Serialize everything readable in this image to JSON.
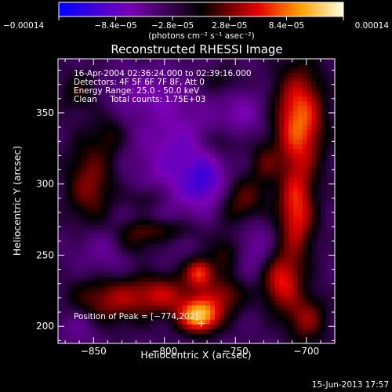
{
  "chart_data": {
    "type": "heatmap",
    "title": "Reconstructed RHESSI Image",
    "xlabel": "Heliocentric X (arcsec)",
    "ylabel": "Heliocentric Y (arcsec)",
    "xlim": [
      -875,
      -680
    ],
    "ylim": [
      188,
      388
    ],
    "x_ticks": [
      -850,
      -800,
      -750,
      -700
    ],
    "x_tick_labels": [
      "−850",
      "−800",
      "−750",
      "−700"
    ],
    "y_ticks": [
      200,
      250,
      300,
      350
    ],
    "y_tick_labels": [
      "200",
      "250",
      "300",
      "350"
    ],
    "colorbar": {
      "range": [
        -0.00014,
        0.00014
      ],
      "ticks": [
        -0.00014,
        -8.4e-05,
        -2.8e-05,
        2.8e-05,
        8.4e-05,
        0.00014
      ],
      "tick_labels": [
        "−0.00014",
        "−8.4e−05",
        "−2.8e−05",
        "2.8e−05",
        "8.4e−05",
        "0.00014"
      ],
      "unit_label": "(photons cm⁻² s⁻¹ asec⁻²)"
    },
    "peak_marker": {
      "x": -774,
      "y": 202
    },
    "blobs": [
      {
        "x": -775,
        "y": 207,
        "sx": 10,
        "sy": 8,
        "amp": 1.35
      },
      {
        "x": -775,
        "y": 238,
        "sx": 7,
        "sy": 7,
        "amp": 0.9
      },
      {
        "x": -802,
        "y": 222,
        "sx": 20,
        "sy": 10,
        "amp": 0.7
      },
      {
        "x": -757,
        "y": 222,
        "sx": 10,
        "sy": 9,
        "amp": 0.55
      },
      {
        "x": -842,
        "y": 218,
        "sx": 18,
        "sy": 12,
        "amp": 0.55
      },
      {
        "x": -805,
        "y": 268,
        "sx": 20,
        "sy": 6,
        "amp": 0.45
      },
      {
        "x": -745,
        "y": 288,
        "sx": 12,
        "sy": 12,
        "amp": 0.55
      },
      {
        "x": -757,
        "y": 252,
        "sx": 8,
        "sy": 9,
        "amp": 0.4
      },
      {
        "x": -705,
        "y": 345,
        "sx": 12,
        "sy": 25,
        "amp": 1.1
      },
      {
        "x": -707,
        "y": 280,
        "sx": 9,
        "sy": 22,
        "amp": 0.9
      },
      {
        "x": -718,
        "y": 232,
        "sx": 10,
        "sy": 14,
        "amp": 0.85
      },
      {
        "x": -700,
        "y": 205,
        "sx": 10,
        "sy": 12,
        "amp": 0.6
      },
      {
        "x": -730,
        "y": 315,
        "sx": 7,
        "sy": 10,
        "amp": 0.4
      },
      {
        "x": -852,
        "y": 300,
        "sx": 12,
        "sy": 22,
        "amp": 0.6
      },
      {
        "x": -822,
        "y": 258,
        "sx": 10,
        "sy": 8,
        "amp": 0.45
      },
      {
        "x": -812,
        "y": 290,
        "sx": 10,
        "sy": 7,
        "amp": 0.35
      },
      {
        "x": -760,
        "y": 330,
        "sx": 10,
        "sy": 8,
        "amp": 0.35
      },
      {
        "x": -860,
        "y": 365,
        "sx": 10,
        "sy": 10,
        "amp": 0.35
      },
      {
        "x": -838,
        "y": 335,
        "sx": 8,
        "sy": 10,
        "amp": 0.3
      },
      {
        "x": -760,
        "y": 372,
        "sx": 10,
        "sy": 7,
        "amp": 0.3
      },
      {
        "x": -790,
        "y": 318,
        "sx": 22,
        "sy": 30,
        "amp": -0.5
      },
      {
        "x": -770,
        "y": 300,
        "sx": 10,
        "sy": 12,
        "amp": -0.5
      },
      {
        "x": -840,
        "y": 255,
        "sx": 16,
        "sy": 14,
        "amp": -0.35
      },
      {
        "x": -735,
        "y": 255,
        "sx": 10,
        "sy": 16,
        "amp": -0.35
      },
      {
        "x": -815,
        "y": 365,
        "sx": 20,
        "sy": 12,
        "amp": -0.3
      },
      {
        "x": -860,
        "y": 200,
        "sx": 10,
        "sy": 10,
        "amp": -0.3
      },
      {
        "x": -745,
        "y": 350,
        "sx": 12,
        "sy": 12,
        "amp": -0.35
      }
    ]
  },
  "overlay": {
    "line1": "16-Apr-2004 02:36:24.000 to 02:39:16.000",
    "line2": "Detectors: 4F 5F 6F 7F 8F, Att 0",
    "line3": "Energy Range: 25.0 - 50.0 keV",
    "line4": "Clean     Total counts: 1.75E+03",
    "peak": "Position of Peak = [−774,202]"
  },
  "footer": {
    "timestamp": "15-Jun-2013 17:57"
  }
}
